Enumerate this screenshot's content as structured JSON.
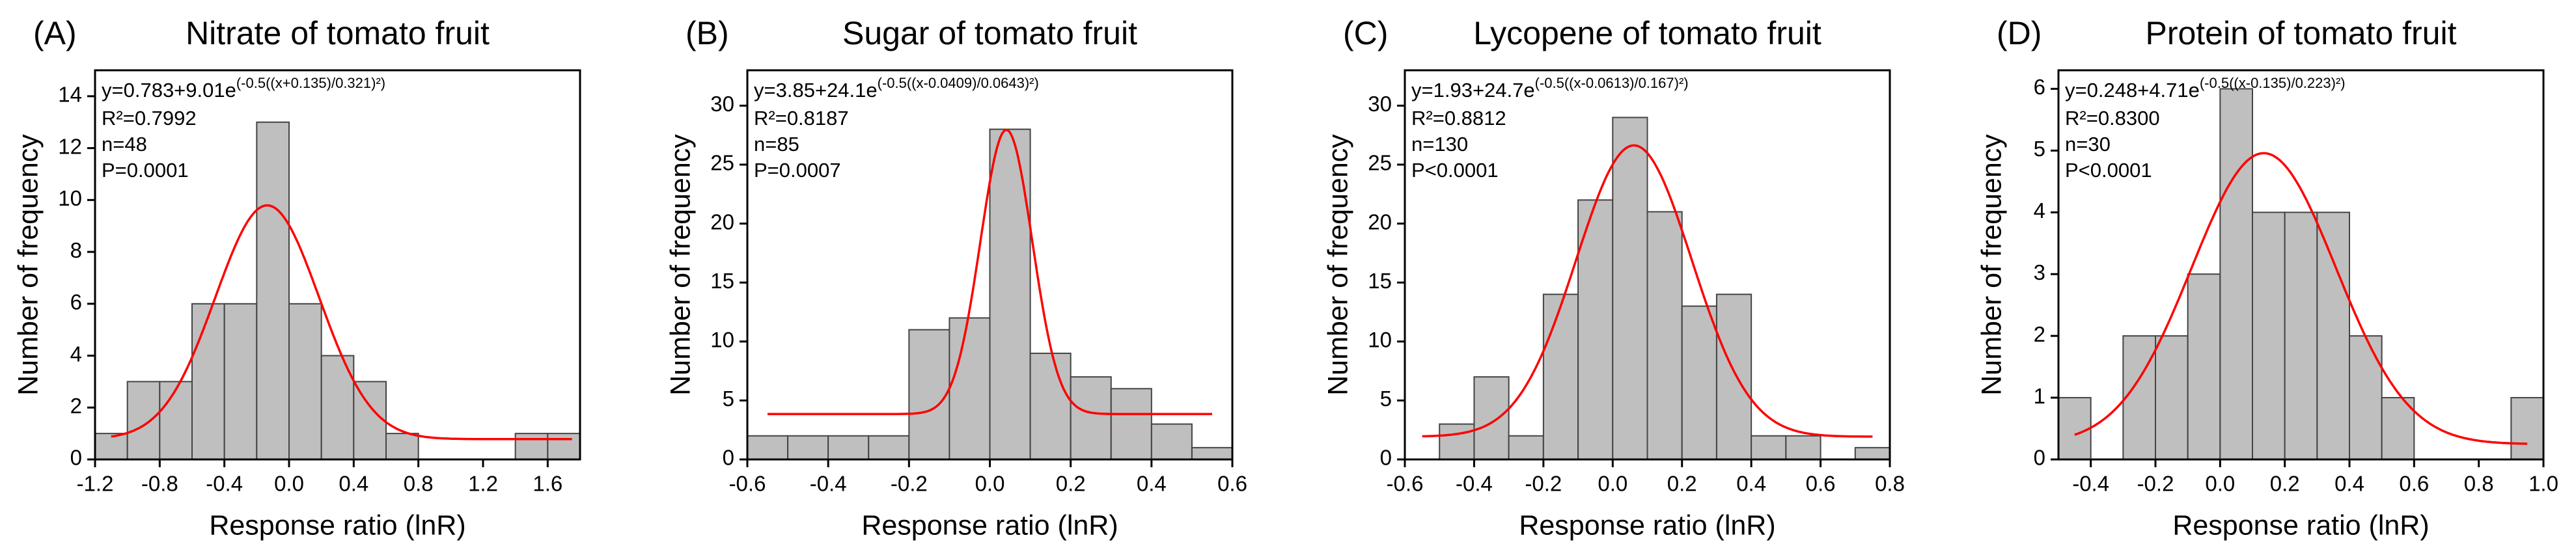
{
  "chart_data": [
    {
      "type": "histogram",
      "panel": "(A)",
      "title": "Nitrate of tomato fruit",
      "x_label": "Response ratio (lnR)",
      "y_label": "Number of frequency",
      "bins": [
        -1.2,
        -1.0,
        -0.8,
        -0.6,
        -0.4,
        -0.2,
        0,
        0.2,
        0.4,
        0.6,
        0.8,
        1.0,
        1.2,
        1.4,
        1.6,
        1.8
      ],
      "counts": [
        1,
        3,
        3,
        6,
        6,
        13,
        6,
        4,
        3,
        1,
        0,
        0,
        0,
        1,
        1
      ],
      "color": "#bfbfbf",
      "curve_color": "#ff0000",
      "fit": {
        "y0": 0.783,
        "A": 9.01,
        "xc": -0.135,
        "w": 0.321
      },
      "fit_range": [
        -1.1,
        1.75
      ],
      "equation": "y=0.783+9.01e",
      "equation_exp": "(-0.5((x+0.135)/0.321)²)",
      "r2": "R²=0.7992",
      "n": "n=48",
      "p": "P=0.0001",
      "xlim": [
        -1.2,
        1.8
      ],
      "xticks": [
        -1.2,
        -0.8,
        -0.4,
        {
          "value": 0,
          "label": "0.0"
        },
        0.4,
        0.8,
        1.2,
        1.6
      ],
      "ylim": [
        0,
        15
      ],
      "yticks": [
        0,
        2,
        4,
        6,
        8,
        10,
        12,
        14
      ]
    },
    {
      "type": "histogram",
      "panel": "(B)",
      "title": "Sugar of tomato fruit",
      "x_label": "Response ratio (lnR)",
      "y_label": "Number of frequency",
      "bins": [
        -0.6,
        -0.5,
        -0.4,
        -0.3,
        -0.2,
        -0.1,
        0,
        0.1,
        0.2,
        0.3,
        0.4,
        0.5,
        0.6
      ],
      "counts": [
        2,
        2,
        2,
        2,
        11,
        12,
        28,
        9,
        7,
        6,
        3,
        1
      ],
      "color": "#bfbfbf",
      "curve_color": "#ff0000",
      "fit": {
        "y0": 3.85,
        "A": 24.1,
        "xc": 0.0409,
        "w": 0.0643
      },
      "fit_range": [
        -0.55,
        0.55
      ],
      "equation": "y=3.85+24.1e",
      "equation_exp": "(-0.5((x-0.0409)/0.0643)²)",
      "r2": "R²=0.8187",
      "n": "n=85",
      "p": "P=0.0007",
      "xlim": [
        -0.6,
        0.6
      ],
      "xticks": [
        -0.6,
        -0.4,
        -0.2,
        {
          "value": 0,
          "label": "0.0"
        },
        0.2,
        0.4,
        0.6
      ],
      "ylim": [
        0,
        33
      ],
      "yticks": [
        0,
        5,
        10,
        15,
        20,
        25,
        30
      ]
    },
    {
      "type": "histogram",
      "panel": "(C)",
      "title": "Lycopene of tomato fruit",
      "x_label": "Response ratio (lnR)",
      "y_label": "Number of frequency",
      "bins": [
        -0.6,
        -0.5,
        -0.4,
        -0.3,
        -0.2,
        -0.1,
        0,
        0.1,
        0.2,
        0.3,
        0.4,
        0.5,
        0.6,
        0.7,
        0.8
      ],
      "counts": [
        0,
        3,
        7,
        2,
        14,
        22,
        29,
        21,
        13,
        14,
        2,
        2,
        0,
        1
      ],
      "color": "#bfbfbf",
      "curve_color": "#ff0000",
      "fit": {
        "y0": 1.93,
        "A": 24.7,
        "xc": 0.0613,
        "w": 0.167
      },
      "fit_range": [
        -0.55,
        0.75
      ],
      "equation": "y=1.93+24.7e",
      "equation_exp": "(-0.5((x-0.0613)/0.167)²)",
      "r2": "R²=0.8812",
      "n": "n=130",
      "p": "P<0.0001",
      "xlim": [
        -0.6,
        0.8
      ],
      "xticks": [
        -0.6,
        -0.4,
        -0.2,
        {
          "value": 0,
          "label": "0.0"
        },
        0.2,
        0.4,
        0.6,
        0.8
      ],
      "ylim": [
        0,
        33
      ],
      "yticks": [
        0,
        5,
        10,
        15,
        20,
        25,
        30
      ]
    },
    {
      "type": "histogram",
      "panel": "(D)",
      "title": "Protein of tomato fruit",
      "x_label": "Response ratio (lnR)",
      "y_label": "Number of frequency",
      "bins": [
        -0.5,
        -0.4,
        -0.3,
        -0.2,
        -0.1,
        0,
        0.1,
        0.2,
        0.3,
        0.4,
        0.5,
        0.6,
        0.7,
        0.8,
        0.9,
        1.0
      ],
      "counts": [
        1,
        0,
        2,
        2,
        3,
        6,
        4,
        4,
        4,
        2,
        1,
        0,
        0,
        0,
        1
      ],
      "color": "#bfbfbf",
      "curve_color": "#ff0000",
      "fit": {
        "y0": 0.248,
        "A": 4.71,
        "xc": 0.135,
        "w": 0.223
      },
      "fit_range": [
        -0.45,
        0.95
      ],
      "equation": "y=0.248+4.71e",
      "equation_exp": "(-0.5((x-0.135)/0.223)²)",
      "r2": "R²=0.8300",
      "n": "n=30",
      "p": "P<0.0001",
      "xlim": [
        -0.5,
        1.0
      ],
      "xticks": [
        -0.4,
        -0.2,
        {
          "value": 0,
          "label": "0.0"
        },
        0.2,
        0.4,
        0.6,
        0.8,
        {
          "value": 1,
          "label": "1.0"
        }
      ],
      "ylim": [
        0,
        6.3
      ],
      "yticks": [
        0,
        1,
        2,
        3,
        4,
        5,
        6
      ]
    }
  ]
}
